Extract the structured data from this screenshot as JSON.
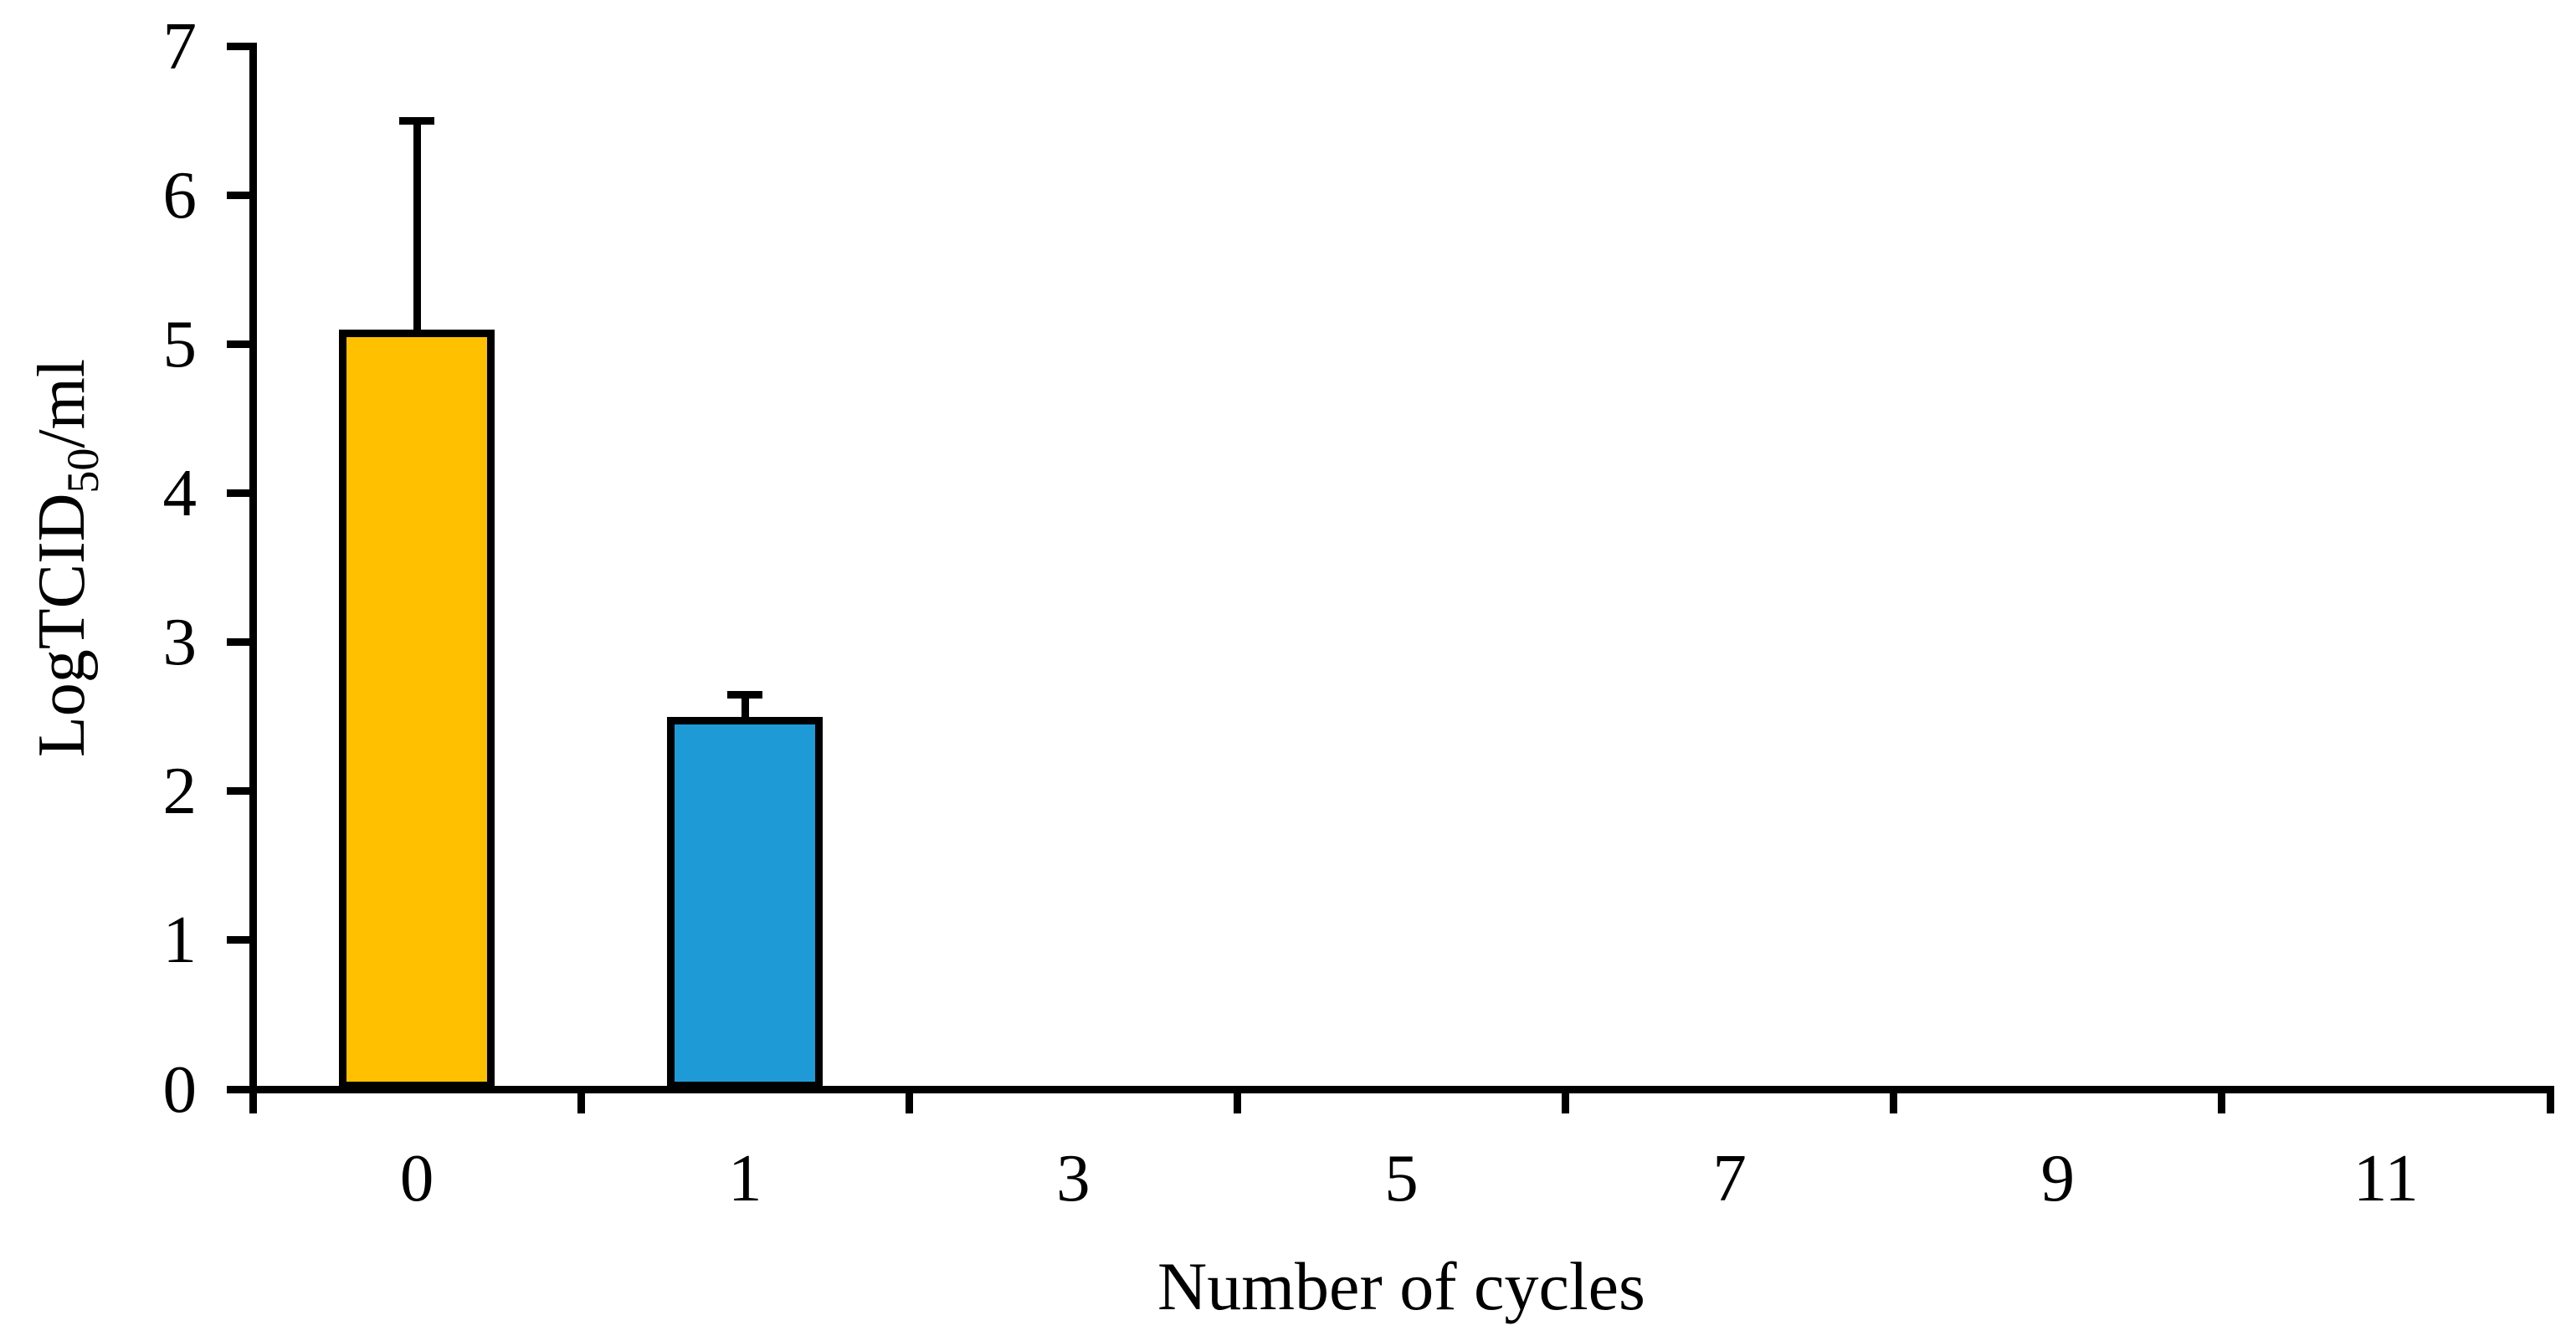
{
  "chart_data": {
    "type": "bar",
    "title": "",
    "categories": [
      "0",
      "1",
      "3",
      "5",
      "7",
      "9",
      "11"
    ],
    "values": [
      5.1,
      2.5,
      0,
      0,
      0,
      0,
      0
    ],
    "errors_plus": [
      1.4,
      0.15,
      0,
      0,
      0,
      0,
      0
    ],
    "bar_colors": [
      "#FFC000",
      "#1E9BD6",
      "",
      "",
      "",
      "",
      ""
    ],
    "xlabel": "Number of cycles",
    "ylabel": "LogTCID50/ml",
    "ylabel_parts": {
      "prefix": "LogTCID",
      "sub": "50",
      "suffix": "/ml"
    },
    "ylim": [
      0,
      7
    ],
    "yticks": [
      0,
      1,
      2,
      3,
      4,
      5,
      6,
      7
    ],
    "grid": false,
    "legend": null,
    "axis_color": "#000000",
    "background": "#FFFFFF"
  }
}
